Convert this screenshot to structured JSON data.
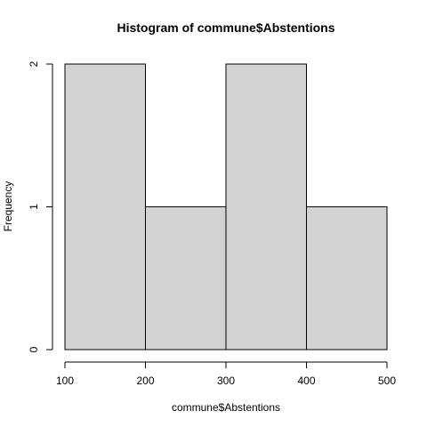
{
  "chart_data": {
    "type": "bar",
    "title": "Histogram of commune$Abstentions",
    "xlabel": "commune$Abstentions",
    "ylabel": "Frequency",
    "bins": [
      {
        "start": 100,
        "end": 200,
        "count": 2
      },
      {
        "start": 200,
        "end": 300,
        "count": 1
      },
      {
        "start": 300,
        "end": 400,
        "count": 2
      },
      {
        "start": 400,
        "end": 500,
        "count": 1
      }
    ],
    "xlim": [
      100,
      500
    ],
    "ylim": [
      0,
      2
    ],
    "xticks": [
      100,
      200,
      300,
      400,
      500
    ],
    "yticks": [
      0,
      1,
      2
    ],
    "bar_color": "#d3d3d3",
    "edge_color": "#000000",
    "grid": false,
    "legend": "none"
  }
}
